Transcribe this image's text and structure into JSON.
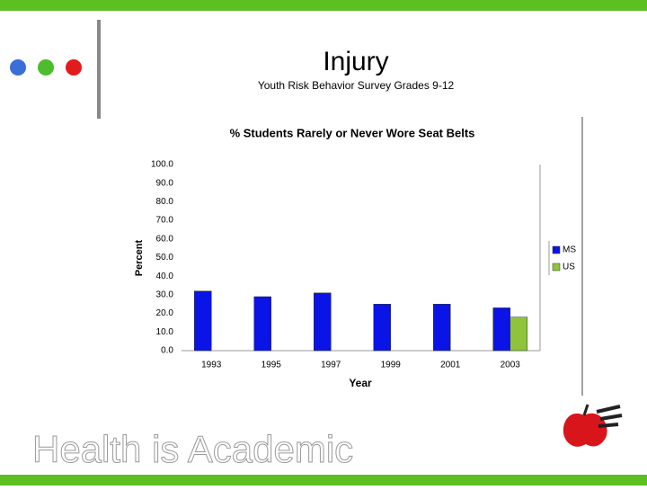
{
  "slide": {
    "title": "Injury",
    "subtitle": "Youth Risk Behavior Survey Grades 9-12",
    "footer": "Health is Academic"
  },
  "chart_data": {
    "type": "bar",
    "title": "% Students Rarely or Never Wore Seat Belts",
    "x_label": "Year",
    "y_label": "Percent",
    "categories": [
      "1993",
      "1995",
      "1997",
      "1999",
      "2001",
      "2003"
    ],
    "series": [
      {
        "name": "MS",
        "color": "#0a14e6",
        "values": [
          32,
          29,
          31,
          25,
          25,
          23
        ]
      },
      {
        "name": "US",
        "color": "#8fc43a",
        "values": [
          null,
          null,
          null,
          null,
          null,
          18
        ]
      }
    ],
    "ylim": [
      0,
      100
    ],
    "yticks": [
      {
        "value": 0,
        "label": "0.0"
      },
      {
        "value": 10,
        "label": "10.0"
      },
      {
        "value": 20,
        "label": "20.0"
      },
      {
        "value": 30,
        "label": "30.0"
      },
      {
        "value": 40,
        "label": "40.0"
      },
      {
        "value": 50,
        "label": "50.0"
      },
      {
        "value": 60,
        "label": "60.0"
      },
      {
        "value": 70,
        "label": "70.0"
      },
      {
        "value": 80,
        "label": "80.0"
      },
      {
        "value": 90,
        "label": "90.0"
      },
      {
        "value": 100,
        "label": "100.0"
      }
    ],
    "legend": "right"
  }
}
